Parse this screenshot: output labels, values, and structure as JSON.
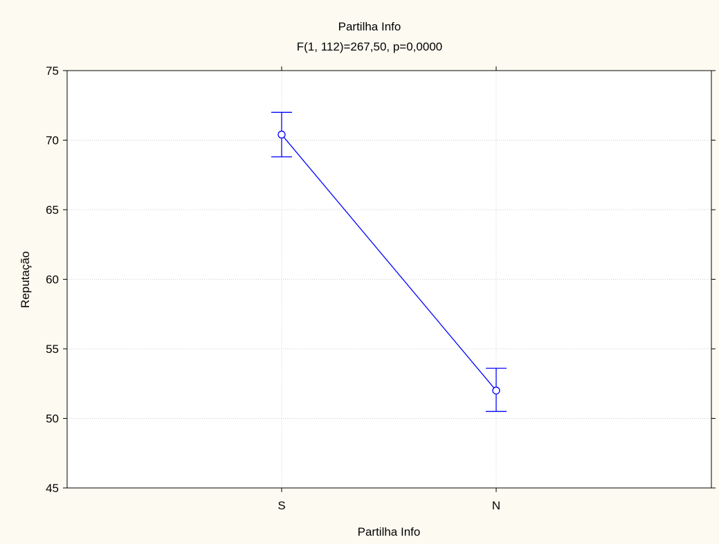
{
  "chart_data": {
    "type": "line",
    "title": "Partilha  Info",
    "subtitle": "F(1, 112)=267,50, p=0,0000",
    "xlabel": "Partilha  Info",
    "ylabel": "Reputação",
    "categories": [
      "S",
      "N"
    ],
    "ylim": [
      45,
      75
    ],
    "yticks": [
      45,
      50,
      55,
      60,
      65,
      70,
      75
    ],
    "grid": true,
    "series": [
      {
        "values": [
          70.4,
          52.0
        ],
        "error_low": [
          68.8,
          50.5
        ],
        "error_high": [
          72.0,
          53.6
        ]
      }
    ],
    "colors": {
      "series": "#0000ff",
      "background": "#fdfbf1",
      "plot_bg": "#ffffff",
      "grid": "#cccccc"
    }
  }
}
